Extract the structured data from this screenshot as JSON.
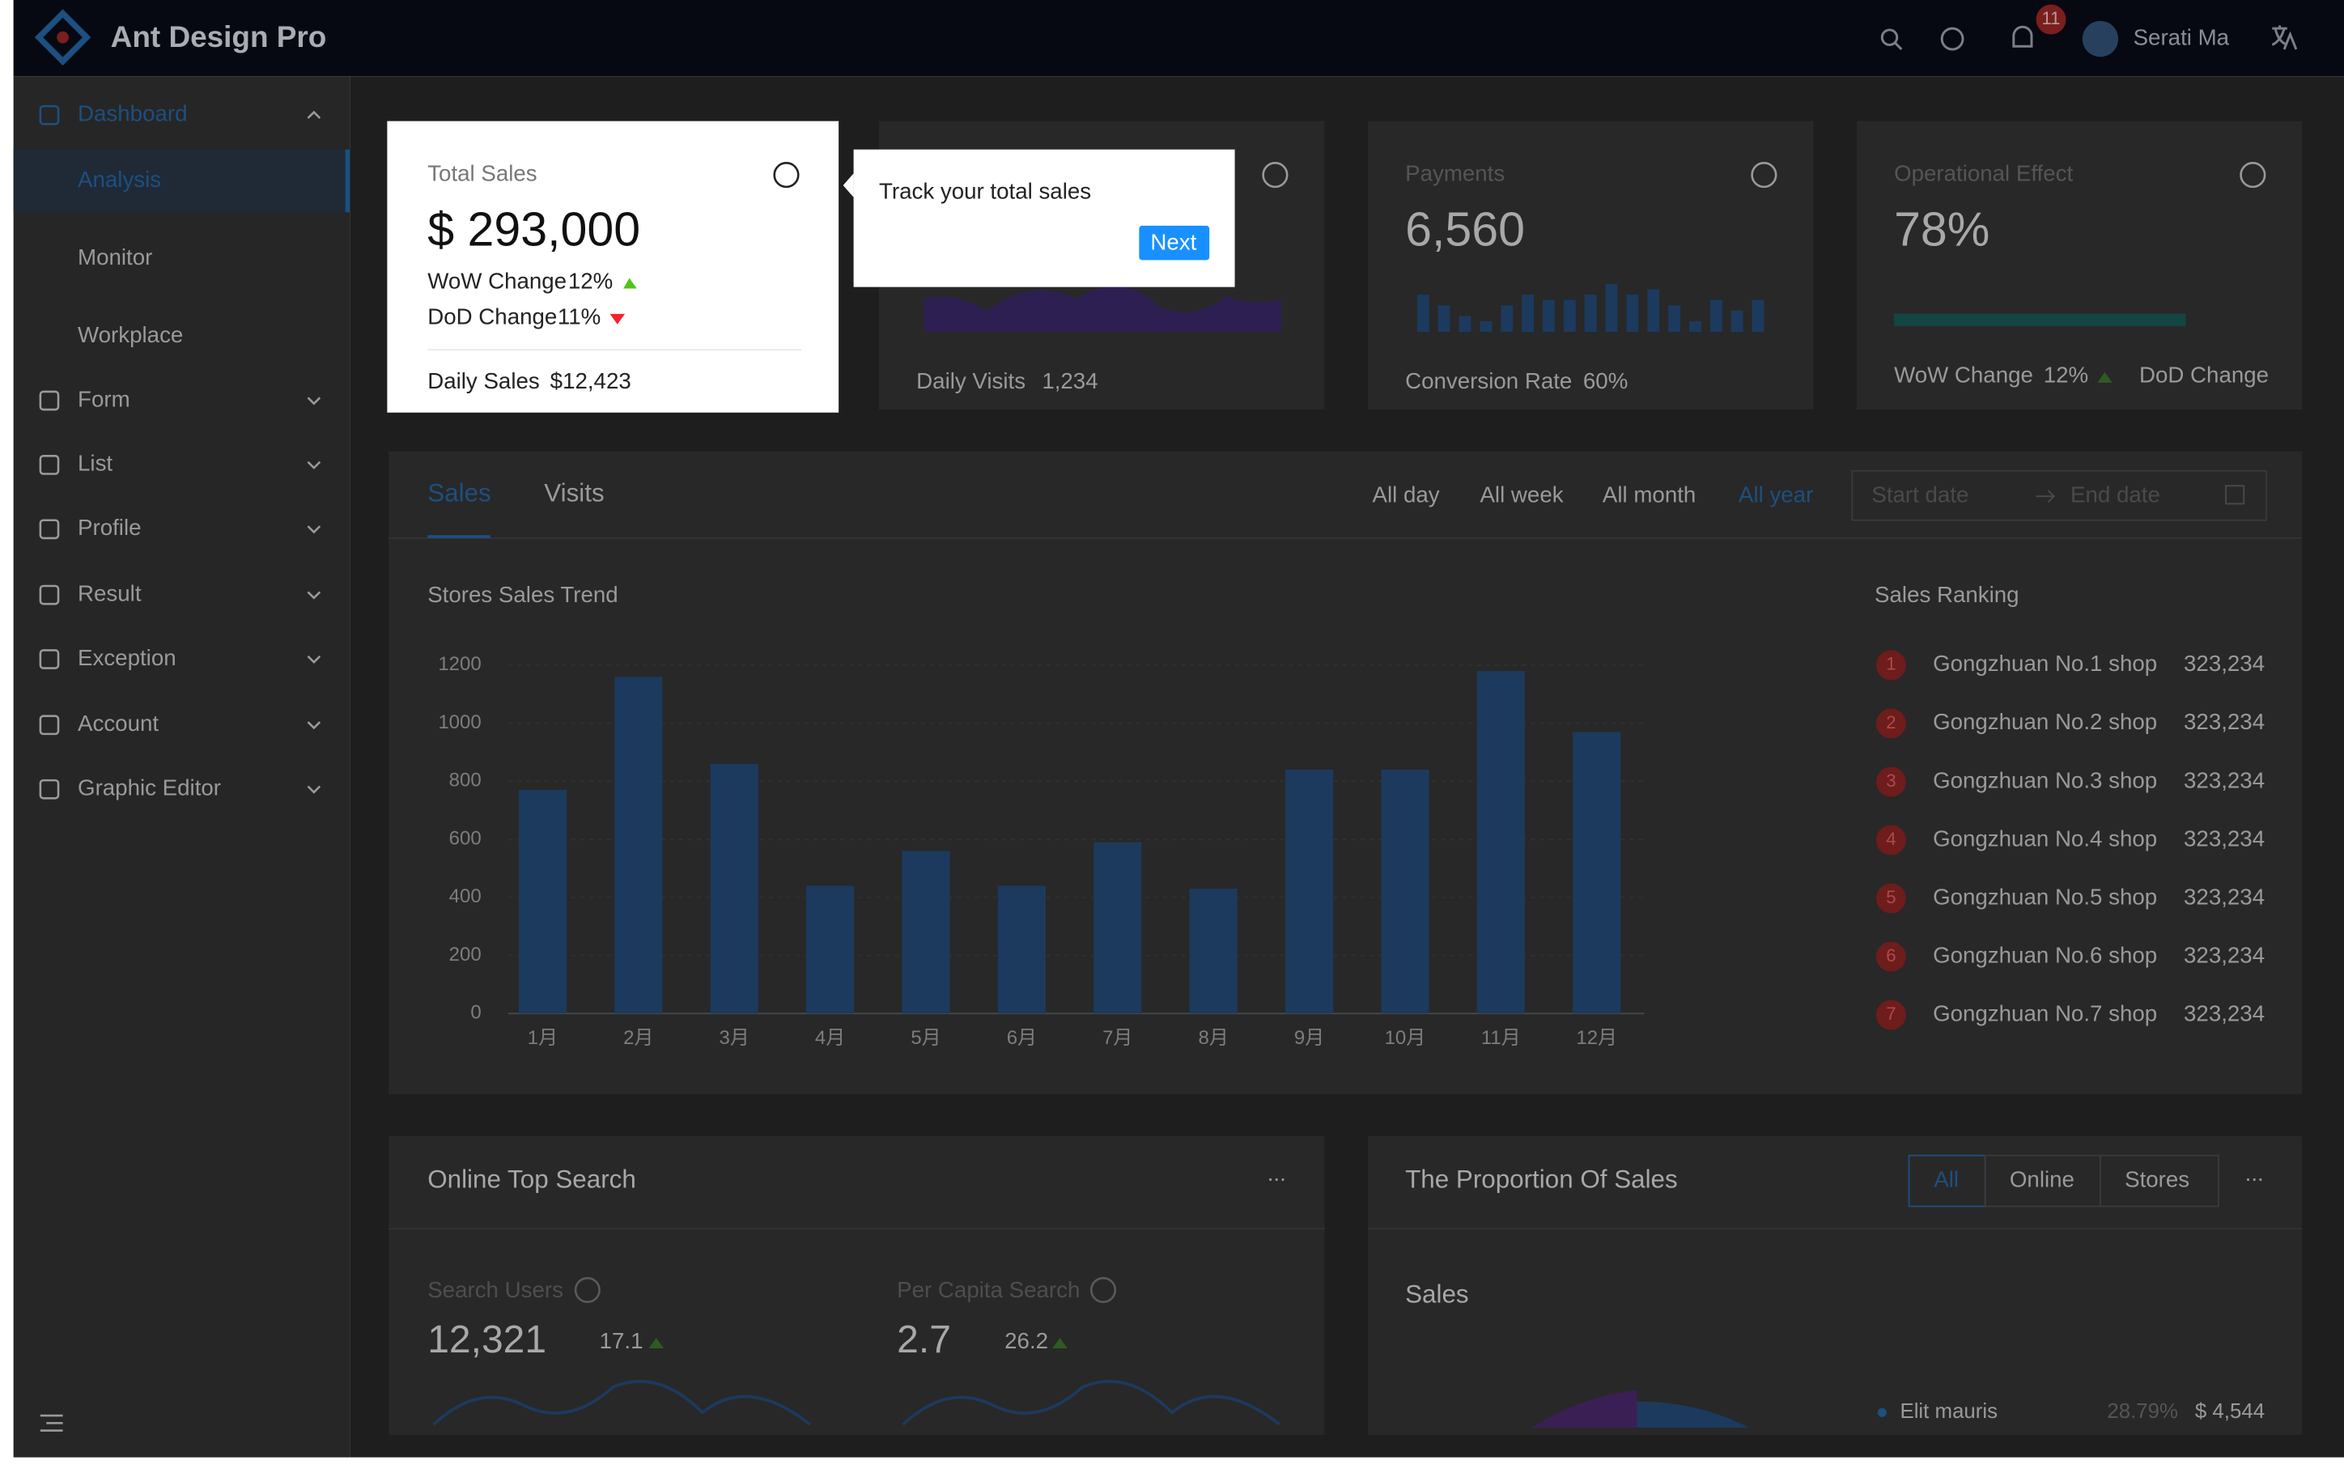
{
  "header": {
    "title": "Ant Design Pro",
    "notifications": "11",
    "user": "Serati Ma"
  },
  "sidebar": {
    "items": [
      "Dashboard",
      "Form",
      "List",
      "Profile",
      "Result",
      "Exception",
      "Account",
      "Graphic Editor"
    ],
    "subitems": [
      "Analysis",
      "Monitor",
      "Workplace"
    ]
  },
  "total_sales": {
    "title": "Total Sales",
    "value": "$ 293,000",
    "wow": "WoW Change",
    "wow_value": "12%",
    "dod": "DoD Change",
    "dod_value": "11%",
    "footer": "Daily Sales",
    "footer_value": "$12,423"
  },
  "visits": {
    "footer": "Daily Visits",
    "footer_value": "1,234"
  },
  "payments": {
    "title": "Payments",
    "value": "6,560",
    "footer": "Conversion Rate",
    "footer_value": "60%",
    "trend": [
      7,
      5,
      3,
      2,
      5,
      7,
      6,
      6,
      7,
      9,
      7,
      8,
      5,
      2,
      6,
      4,
      6
    ]
  },
  "operational": {
    "title": "Operational Effect",
    "value": 78,
    "value_label": "78%",
    "wow": "WoW Change",
    "wow_value": "12%",
    "dod": "DoD Change"
  },
  "tour": {
    "text": "Track your total sales",
    "button": "Next"
  },
  "sales": {
    "tabs": [
      "Sales",
      "Visits"
    ],
    "ranges": [
      "All day",
      "All week",
      "All month",
      "All year"
    ],
    "start_placeholder": "Start date",
    "end_placeholder": "End date",
    "chart": {
      "type": "bar",
      "title": "Stores Sales Trend",
      "categories": [
        "1月",
        "2月",
        "3月",
        "4月",
        "5月",
        "6月",
        "7月",
        "8月",
        "9月",
        "10月",
        "11月",
        "12月"
      ],
      "values": [
        770,
        1160,
        860,
        440,
        560,
        440,
        590,
        430,
        840,
        840,
        1180,
        970
      ],
      "ylim": [
        0,
        1200
      ],
      "yticks": [
        0,
        200,
        400,
        600,
        800,
        1000,
        1200
      ],
      "color": "#1c3a5e"
    },
    "ranking_title": "Sales Ranking",
    "ranking": [
      {
        "rank": 1,
        "name": "Gongzhuan No.1 shop",
        "value": "323,234"
      },
      {
        "rank": 2,
        "name": "Gongzhuan No.2 shop",
        "value": "323,234"
      },
      {
        "rank": 3,
        "name": "Gongzhuan No.3 shop",
        "value": "323,234"
      },
      {
        "rank": 4,
        "name": "Gongzhuan No.4 shop",
        "value": "323,234"
      },
      {
        "rank": 5,
        "name": "Gongzhuan No.5 shop",
        "value": "323,234"
      },
      {
        "rank": 6,
        "name": "Gongzhuan No.6 shop",
        "value": "323,234"
      },
      {
        "rank": 7,
        "name": "Gongzhuan No.7 shop",
        "value": "323,234"
      }
    ]
  },
  "top_search": {
    "title": "Online Top Search",
    "more": "...",
    "users_label": "Search Users",
    "users_value": "12,321",
    "users_change": "17.1",
    "capita_label": "Per Capita Search",
    "capita_value": "2.7",
    "capita_change": "26.2"
  },
  "proportion": {
    "title": "The Proportion Of Sales",
    "more": "...",
    "buttons": [
      "All",
      "Online",
      "Stores"
    ],
    "subtitle": "Sales",
    "legend_name": "Elit mauris",
    "legend_percent": "28.79%",
    "legend_value": "$ 4,544"
  }
}
